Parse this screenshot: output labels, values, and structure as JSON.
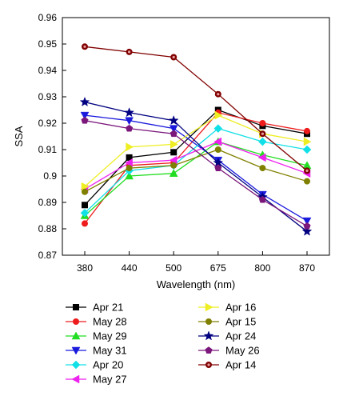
{
  "chart_data": {
    "type": "line",
    "xlabel": "Wavelength (nm)",
    "ylabel": "SSA",
    "categories": [
      "380",
      "440",
      "500",
      "675",
      "800",
      "870"
    ],
    "ylim": [
      0.87,
      0.96
    ],
    "yticks": [
      "0.87",
      "0.88",
      "0.89",
      "0.9",
      "0.91",
      "0.92",
      "0.93",
      "0.94",
      "0.95",
      "0.96"
    ],
    "grid": false,
    "legend_position": "bottom",
    "series": [
      {
        "name": "Apr 21",
        "color": "#000000",
        "marker": "square",
        "values": [
          0.889,
          0.907,
          0.909,
          0.925,
          0.919,
          0.916
        ]
      },
      {
        "name": "May 28",
        "color": "#ee1c1c",
        "marker": "circle",
        "values": [
          0.882,
          0.904,
          0.905,
          0.924,
          0.92,
          0.917
        ]
      },
      {
        "name": "May 29",
        "color": "#22dd22",
        "marker": "triangle-up",
        "values": [
          0.885,
          0.9,
          0.901,
          0.913,
          0.908,
          0.904
        ]
      },
      {
        "name": "May 31",
        "color": "#1a1add",
        "marker": "triangle-down",
        "values": [
          0.923,
          0.921,
          0.918,
          0.906,
          0.893,
          0.883
        ]
      },
      {
        "name": "Apr 20",
        "color": "#11e0e6",
        "marker": "diamond",
        "values": [
          0.886,
          0.902,
          0.904,
          0.918,
          0.913,
          0.91
        ]
      },
      {
        "name": "May 27",
        "color": "#ee22ee",
        "marker": "triangle-left",
        "values": [
          0.895,
          0.905,
          0.906,
          0.913,
          0.907,
          0.901
        ]
      },
      {
        "name": "Apr 16",
        "color": "#eeee22",
        "marker": "triangle-right",
        "values": [
          0.896,
          0.911,
          0.912,
          0.923,
          0.916,
          0.913
        ]
      },
      {
        "name": "Apr 15",
        "color": "#808000",
        "marker": "circle",
        "values": [
          0.894,
          0.903,
          0.904,
          0.91,
          0.903,
          0.898
        ]
      },
      {
        "name": "Apr 24",
        "color": "#000080",
        "marker": "star",
        "values": [
          0.928,
          0.924,
          0.921,
          0.905,
          0.892,
          0.879
        ]
      },
      {
        "name": "May 26",
        "color": "#7b167b",
        "marker": "pentagon",
        "values": [
          0.921,
          0.918,
          0.916,
          0.903,
          0.891,
          0.881
        ]
      },
      {
        "name": "Apr 14",
        "color": "#800000",
        "marker": "circle-dot",
        "values": [
          0.949,
          0.947,
          0.945,
          0.931,
          0.916,
          0.902
        ]
      }
    ]
  }
}
